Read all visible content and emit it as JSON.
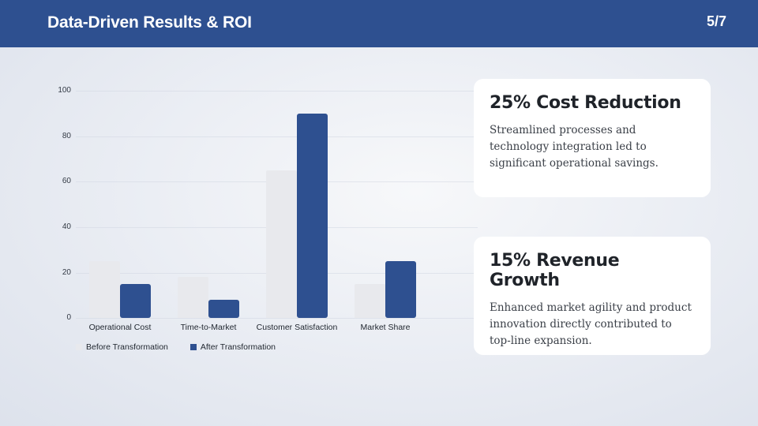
{
  "header": {
    "title": "Data-Driven Results & ROI",
    "page_indicator": "5/7"
  },
  "chart_data": {
    "type": "bar",
    "title": "",
    "xlabel": "",
    "ylabel": "",
    "ylim": [
      0,
      100
    ],
    "yticks": [
      "0",
      "20",
      "40",
      "60",
      "80",
      "100"
    ],
    "grid": true,
    "legend_position": "bottom-left",
    "categories": [
      "Operational Cost",
      "Time-to-Market",
      "Customer Satisfaction",
      "Market Share"
    ],
    "series": [
      {
        "name": "Before Transformation",
        "color": "#e8e9ed",
        "values": [
          25,
          18,
          65,
          15
        ]
      },
      {
        "name": "After Transformation",
        "color": "#2e5090",
        "values": [
          15,
          8,
          90,
          25
        ]
      }
    ]
  },
  "cards": [
    {
      "title": "25% Cost Reduction",
      "text": "Streamlined processes and technology integration led to significant operational savings."
    },
    {
      "title": "15% Revenue Growth",
      "text": "Enhanced market agility and product innovation directly contributed to top-line expansion."
    }
  ],
  "colors": {
    "brand": "#2e5090",
    "before_bar": "#e8e9ed"
  }
}
